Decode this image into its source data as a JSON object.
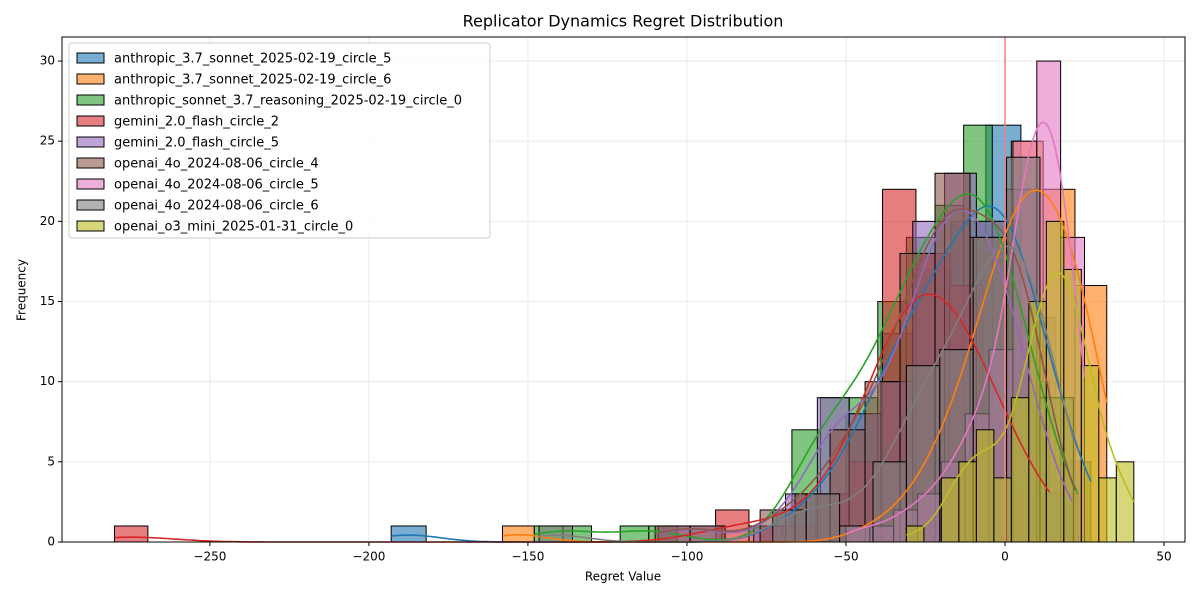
{
  "chart_data": {
    "type": "histogram",
    "title": "Replicator Dynamics Regret Distribution",
    "x_label": "Regret Value",
    "y_label": "Frequency",
    "xlim": [
      -296.5,
      56.6
    ],
    "ylim": [
      0,
      31.5
    ],
    "xticks": [
      {
        "value": -250,
        "label": "−250"
      },
      {
        "value": -200,
        "label": "−200"
      },
      {
        "value": -150,
        "label": "−150"
      },
      {
        "value": -100,
        "label": "−100"
      },
      {
        "value": -50,
        "label": "−50"
      },
      0,
      50
    ],
    "yticks": [
      0,
      5,
      10,
      15,
      20,
      25,
      30
    ],
    "grid": true,
    "legend": "upper left",
    "kde": true,
    "opacity": 0.6,
    "vline": {
      "x": 0,
      "color": "#f08080"
    },
    "series": [
      {
        "name": "anthropic_3.7_sonnet_2025-02-19_circle_5",
        "color": "#1f77b4",
        "bins": [
          -193,
          -182,
          -171,
          -160,
          -149,
          -138,
          -127,
          -116,
          -105,
          -94,
          -83,
          -72,
          -61,
          -50,
          -39,
          -28,
          -17,
          -6,
          5,
          16,
          27
        ],
        "values": [
          1,
          0,
          0,
          0,
          0,
          0,
          0,
          0,
          0,
          0,
          0,
          2,
          3,
          8,
          13,
          17,
          20,
          26,
          14,
          5
        ]
      },
      {
        "name": "anthropic_3.7_sonnet_2025-02-19_circle_6",
        "color": "#ff7f0e",
        "bins": [
          -158,
          -148,
          -138,
          -128,
          -118,
          -108,
          -98,
          -88,
          -78,
          -68,
          -58,
          -48,
          -38,
          -28,
          -18,
          -8,
          2,
          12,
          22,
          32
        ],
        "values": [
          1,
          0,
          0,
          0,
          0,
          0,
          0,
          0,
          0,
          0,
          0,
          1,
          2,
          5,
          10,
          18,
          25,
          22,
          16
        ]
      },
      {
        "name": "anthropic_sonnet_3.7_reasoning_2025-02-19_circle_0",
        "color": "#2ca02c",
        "bins": [
          -148,
          -139,
          -130,
          -121,
          -112,
          -103,
          -94,
          -85,
          -76,
          -67,
          -58,
          -49,
          -40,
          -31,
          -22,
          -13,
          -4,
          5,
          14,
          23
        ],
        "values": [
          1,
          1,
          0,
          1,
          1,
          0,
          0,
          0,
          0,
          7,
          9,
          9,
          15,
          19,
          21,
          26,
          20,
          10,
          3
        ]
      },
      {
        "name": "gemini_2.0_flash_circle_2",
        "color": "#d62728",
        "bins": [
          -280,
          -269.5,
          -259,
          -248.5,
          -238,
          -227.5,
          -217,
          -206.5,
          -196,
          -185.5,
          -175,
          -164.5,
          -154,
          -143.5,
          -133,
          -122.5,
          -112,
          -101.5,
          -91,
          -80.5,
          -70,
          -59.5,
          -49,
          -38.5,
          -28,
          -17.5,
          -7,
          3.5,
          14
        ],
        "values": [
          1,
          0,
          0,
          0,
          0,
          0,
          0,
          0,
          0,
          0,
          0,
          0,
          0,
          0,
          0,
          0,
          0,
          0,
          2,
          1,
          1,
          3,
          5,
          22,
          18,
          16,
          8,
          3
        ]
      },
      {
        "name": "gemini_2.0_flash_circle_5",
        "color": "#9467bd",
        "bins": [
          -109,
          -99,
          -89,
          -79,
          -69,
          -59,
          -49,
          -39,
          -29,
          -19,
          -9,
          1,
          11,
          21
        ],
        "values": [
          1,
          1,
          0,
          1,
          3,
          9,
          8,
          10,
          20,
          23,
          20,
          12,
          3
        ]
      },
      {
        "name": "openai_4o_2024-08-06_circle_4",
        "color": "#8c564b",
        "bins": [
          -110,
          -99,
          -88,
          -77,
          -66,
          -55,
          -44,
          -33,
          -22,
          -11,
          0,
          11,
          22
        ],
        "values": [
          1,
          1,
          0,
          2,
          3,
          7,
          10,
          18,
          23,
          19,
          22,
          3
        ]
      },
      {
        "name": "openai_4o_2024-08-06_circle_5",
        "color": "#e377c2",
        "bins": [
          -50,
          -42.5,
          -35,
          -27.5,
          -20,
          -12.5,
          -5,
          2.5,
          10,
          17.5,
          25
        ],
        "values": [
          1,
          1,
          2,
          3,
          5,
          8,
          12,
          25,
          30,
          19
        ]
      },
      {
        "name": "openai_4o_2024-08-06_circle_6",
        "color": "#7f7f7f",
        "bins": [
          -146.5,
          -136,
          -125.5,
          -115,
          -104.5,
          -94,
          -83.5,
          -73,
          -62.5,
          -52,
          -41.5,
          -31,
          -20.5,
          -10,
          0.5,
          11,
          21.5
        ],
        "values": [
          1,
          0,
          0,
          0,
          0,
          0,
          0,
          2,
          3,
          1,
          5,
          11,
          12,
          19,
          24,
          9
        ]
      },
      {
        "name": "openai_o3_mini_2025-01-31_circle_0",
        "color": "#bcbd22",
        "bins": [
          -31,
          -25.5,
          -20,
          -14.5,
          -9,
          -3.5,
          2,
          7.5,
          13,
          18.5,
          24,
          29.5,
          35,
          40.5
        ],
        "values": [
          1,
          0,
          4,
          5,
          7,
          4,
          9,
          15,
          20,
          17,
          11,
          4,
          5
        ]
      }
    ]
  }
}
